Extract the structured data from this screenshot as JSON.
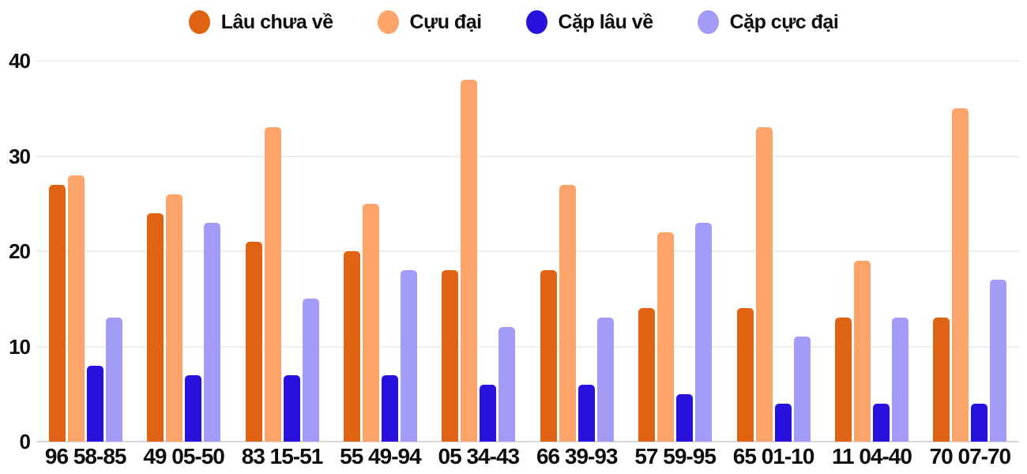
{
  "chart_data": {
    "type": "bar",
    "title": "",
    "legend_position": "top",
    "grid": true,
    "categories": [
      "96 58-85",
      "49 05-50",
      "83 15-51",
      "55 49-94",
      "05 34-43",
      "66 39-93",
      "57 59-95",
      "65 01-10",
      "11 04-40",
      "70 07-70"
    ],
    "series": [
      {
        "name": "Lâu chưa về",
        "color": "#E06313",
        "values": [
          27,
          24,
          21,
          20,
          18,
          18,
          14,
          14,
          13,
          13
        ]
      },
      {
        "name": "Cựu đại",
        "color": "#FCA46A",
        "values": [
          28,
          26,
          33,
          25,
          38,
          27,
          22,
          33,
          19,
          35
        ]
      },
      {
        "name": "Cặp lâu về",
        "color": "#2811DC",
        "values": [
          8,
          7,
          7,
          7,
          6,
          6,
          5,
          4,
          4,
          4
        ]
      },
      {
        "name": "Cặp cực đại",
        "color": "#A29BF8",
        "values": [
          13,
          23,
          15,
          18,
          12,
          13,
          23,
          11,
          13,
          17
        ]
      }
    ],
    "xlabel": "",
    "ylabel": "",
    "y_axis": {
      "min": 0,
      "max": 40,
      "ticks": [
        0,
        10,
        20,
        30,
        40
      ]
    }
  },
  "colors": {
    "background": "#FFFFFF",
    "gridline": "#EFEFEF",
    "baseline": "#D7D7D7",
    "text": "#0D0D0D"
  }
}
